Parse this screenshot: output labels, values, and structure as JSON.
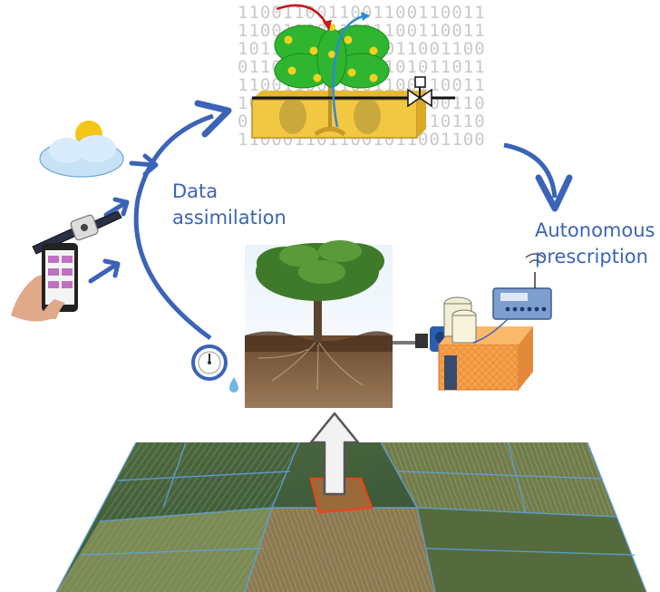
{
  "labels": {
    "data_assimilation": [
      "Data",
      "assimilation"
    ],
    "autonomous_prescription": [
      "Autonomous",
      "prescription"
    ]
  },
  "binary_rows": [
    "1100110011001100110011",
    "1100110011001100110011",
    "1011001100110011001100",
    "0110011001101101011011",
    "1100110011001100110011",
    "1001100110011001100110",
    "0110011001100110110110",
    "1100011011001011001100"
  ],
  "icons": [
    "weather-icon",
    "satellite-icon",
    "smartphone-icon",
    "pressure-sensor-icon",
    "plant-model-icon",
    "valve-icon",
    "irrigation-controller-icon",
    "water-tank-icon",
    "pump-icon"
  ],
  "colors": {
    "arrow_blue": "#3b64b8",
    "label_blue": "#3b64b8",
    "plant_green": "#2fb52f",
    "soil_box": "#f2c842",
    "field_highlight": "#e8451b",
    "tank_orange": "#f7a24a"
  }
}
